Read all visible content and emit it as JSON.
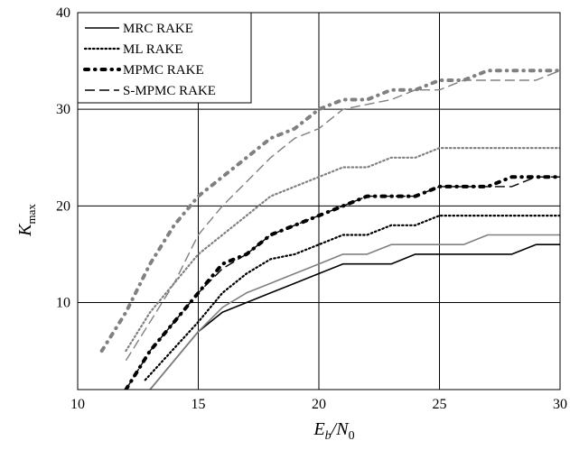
{
  "chart_data": {
    "type": "line",
    "xlim": [
      10,
      30
    ],
    "ylim": [
      1,
      40
    ],
    "x_ticks": [
      "10",
      "15",
      "20",
      "25",
      "30"
    ],
    "y_ticks": [
      "10",
      "20",
      "30",
      "40"
    ],
    "x_tick_values": [
      10,
      15,
      20,
      25,
      30
    ],
    "y_tick_values": [
      10,
      20,
      30,
      40
    ],
    "grid": true,
    "legend_position": "top-left",
    "xlabel": {
      "main": "E",
      "sub1": "b",
      "sep": "/N",
      "sub2": "0"
    },
    "ylabel": {
      "main": "K",
      "sub": "max"
    },
    "legend": [
      {
        "label": "MRC RAKE",
        "style": "solid"
      },
      {
        "label": "ML RAKE",
        "style": "dotted"
      },
      {
        "label": "MPMC RAKE",
        "style": "dash-dot-heavy"
      },
      {
        "label": "S-MPMC RAKE",
        "style": "dashed"
      }
    ],
    "series": [
      {
        "name": "MRC RAKE",
        "color": "#000000",
        "style": "solid",
        "x": [
          13,
          15,
          16,
          17,
          18,
          19,
          20,
          21,
          22,
          23,
          24,
          25,
          26,
          27,
          28,
          29,
          30
        ],
        "y": [
          1,
          7,
          9,
          10,
          11,
          12,
          13,
          14,
          14,
          14,
          15,
          15,
          15,
          15,
          15,
          16,
          16
        ]
      },
      {
        "name": "MRC RAKE",
        "color": "#808080",
        "style": "solid",
        "x": [
          13,
          15,
          16,
          17,
          18,
          19,
          20,
          21,
          22,
          23,
          24,
          25,
          26,
          27,
          28,
          29,
          30
        ],
        "y": [
          1,
          7,
          9.5,
          11,
          12,
          13,
          14,
          15,
          15,
          16,
          16,
          16,
          16,
          17,
          17,
          17,
          17
        ]
      },
      {
        "name": "ML RAKE",
        "color": "#000000",
        "style": "dotted",
        "x": [
          12.8,
          15,
          16,
          17,
          18,
          19,
          20,
          21,
          22,
          23,
          24,
          25,
          26,
          27,
          28,
          29,
          30
        ],
        "y": [
          2,
          8,
          11,
          13,
          14.5,
          15,
          16,
          17,
          17,
          18,
          18,
          19,
          19,
          19,
          19,
          19,
          19
        ]
      },
      {
        "name": "ML RAKE",
        "color": "#808080",
        "style": "dotted",
        "x": [
          12,
          13,
          14,
          15,
          16,
          17,
          18,
          19,
          20,
          21,
          22,
          23,
          24,
          25,
          26,
          27,
          28,
          29,
          30
        ],
        "y": [
          5,
          9,
          12,
          15,
          17,
          19,
          21,
          22,
          23,
          24,
          24,
          25,
          25,
          26,
          26,
          26,
          26,
          26,
          26
        ]
      },
      {
        "name": "MPMC RAKE",
        "color": "#000000",
        "style": "dash-dot-heavy",
        "x": [
          12,
          13,
          14,
          15,
          16,
          17,
          18,
          19,
          20,
          21,
          22,
          23,
          24,
          25,
          26,
          27,
          28,
          29,
          30
        ],
        "y": [
          1,
          5,
          8,
          11,
          14,
          15,
          17,
          18,
          19,
          20,
          21,
          21,
          21,
          22,
          22,
          22,
          23,
          23,
          23
        ]
      },
      {
        "name": "MPMC RAKE",
        "color": "#808080",
        "style": "dash-dot-heavy",
        "x": [
          11,
          12,
          13,
          14,
          15,
          16,
          17,
          18,
          19,
          20,
          21,
          22,
          23,
          24,
          25,
          26,
          27,
          28,
          29,
          30
        ],
        "y": [
          5,
          9,
          14,
          18,
          21,
          23,
          25,
          27,
          28,
          30,
          31,
          31,
          32,
          32,
          33,
          33,
          34,
          34,
          34,
          34
        ]
      },
      {
        "name": "S-MPMC RAKE",
        "color": "#000000",
        "style": "dashed",
        "x": [
          12,
          13,
          14,
          15,
          16,
          17,
          18,
          19,
          20,
          21,
          22,
          23,
          24,
          25,
          26,
          27,
          28,
          29,
          30
        ],
        "y": [
          1,
          5,
          8,
          11,
          13.5,
          15,
          17,
          18,
          19,
          20,
          21,
          21,
          21,
          22,
          22,
          22,
          22,
          23,
          23
        ]
      },
      {
        "name": "S-MPMC RAKE",
        "color": "#808080",
        "style": "dashed",
        "x": [
          12,
          13,
          14,
          15,
          16,
          17,
          18,
          19,
          20,
          21,
          22,
          23,
          24,
          25,
          26,
          27,
          28,
          29,
          30
        ],
        "y": [
          4,
          8,
          12,
          17,
          20,
          22.5,
          25,
          27,
          28,
          30,
          30.5,
          31,
          32,
          32,
          33,
          33,
          33,
          33,
          34
        ]
      }
    ]
  }
}
